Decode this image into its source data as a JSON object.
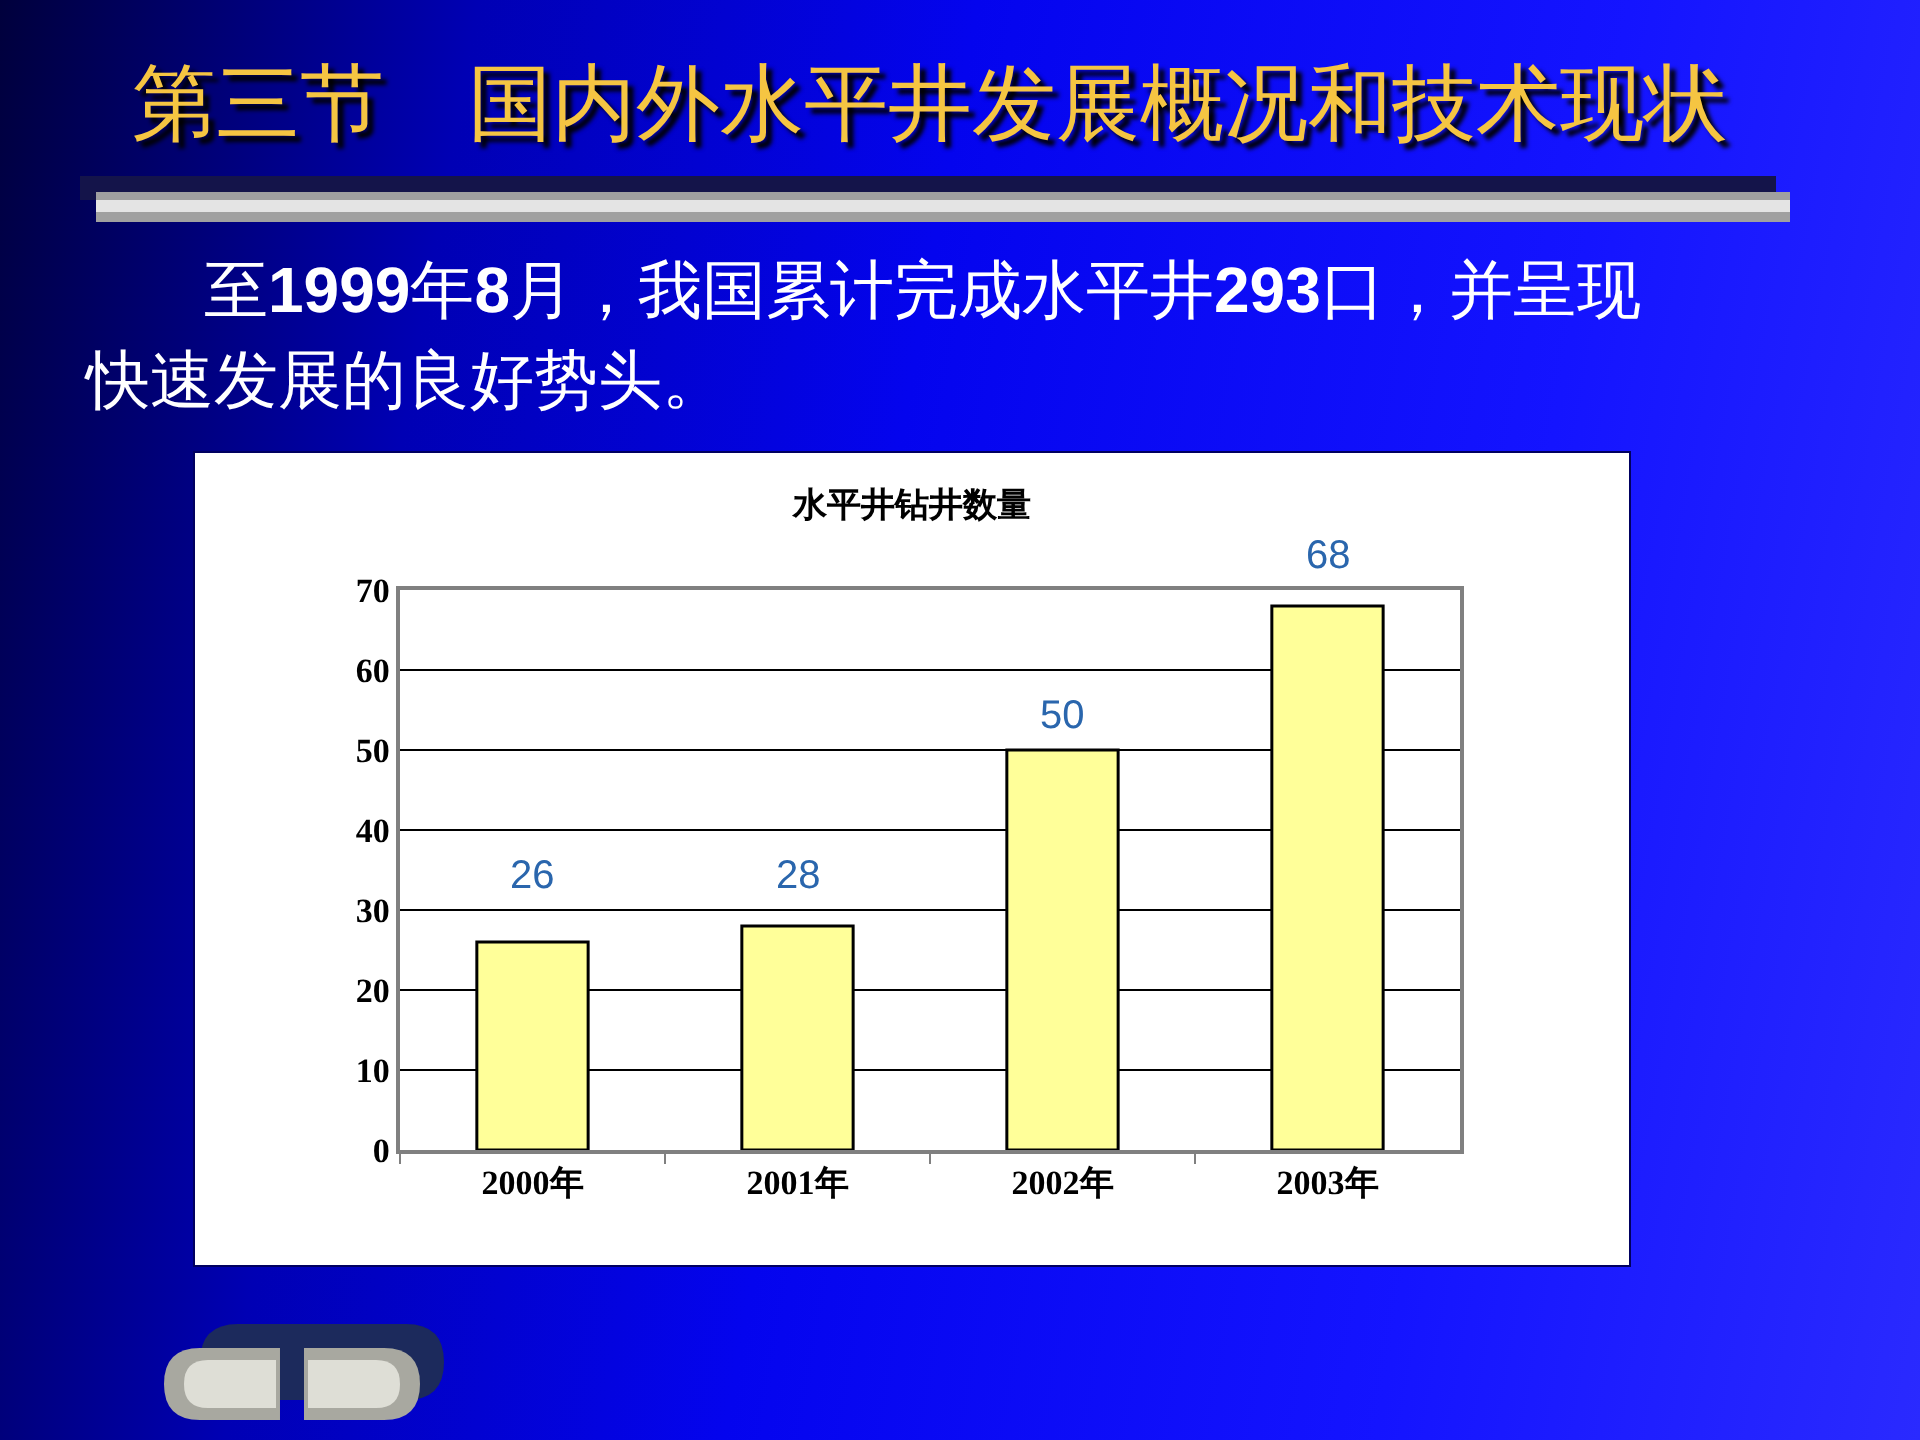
{
  "chart_data": {
    "type": "bar",
    "title": "水平井钻井数量",
    "annotations": [
      "第三节　国内外水平井发展概况和技术现状",
      "至1999年8月，我国累计完成水平井293口，并呈现快速发展的良好势头。"
    ],
    "categories": [
      "2000年",
      "2001年",
      "2002年",
      "2003年"
    ],
    "values": [
      26,
      28,
      50,
      68
    ],
    "color": "#ffff99",
    "ylim": [
      0,
      70
    ],
    "yticks": [
      0,
      10,
      20,
      30,
      40,
      50,
      60,
      70
    ],
    "grid": "y",
    "data_labels": true
  }
}
